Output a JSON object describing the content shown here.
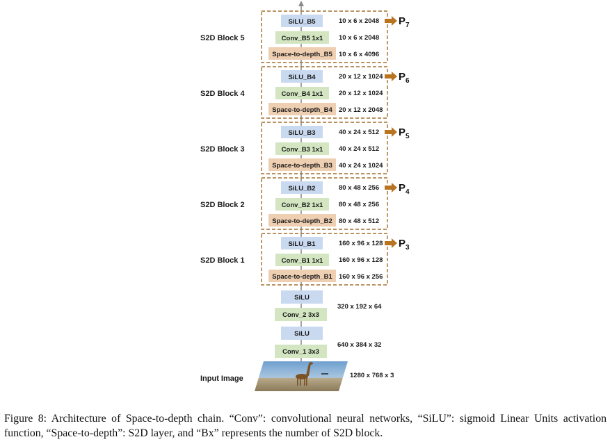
{
  "diagram": {
    "input_image_label": "Input Image",
    "input_dims": "1280 x 768 x 3",
    "stem": [
      {
        "name": "Conv_1 3x3",
        "kind": "conv"
      },
      {
        "name": "SiLU",
        "kind": "silu"
      },
      {
        "name": "Conv_2 3x3",
        "kind": "conv"
      },
      {
        "name": "SiLU",
        "kind": "silu"
      }
    ],
    "stem_dims": [
      "640 x 384 x 32",
      "320 x 192 x 64"
    ],
    "blocks": [
      {
        "label": "S2D Block 1",
        "s2d": "Space-to-depth_B1",
        "conv": "Conv_B1 1x1",
        "silu": "SiLU_B1",
        "s2d_dims": "160 x 96 x 256",
        "conv_dims": "160 x 96 x 128",
        "silu_dims": "160 x 96 x 128",
        "output": "P",
        "output_sub": "3"
      },
      {
        "label": "S2D Block 2",
        "s2d": "Space-to-depth_B2",
        "conv": "Conv_B2 1x1",
        "silu": "SiLU_B2",
        "s2d_dims": "80 x 48 x 512",
        "conv_dims": "80 x 48 x 256",
        "silu_dims": "80 x 48 x 256",
        "output": "P",
        "output_sub": "4"
      },
      {
        "label": "S2D Block 3",
        "s2d": "Space-to-depth_B3",
        "conv": "Conv_B3 1x1",
        "silu": "SiLU_B3",
        "s2d_dims": "40 x 24 x 1024",
        "conv_dims": "40 x 24 x 512",
        "silu_dims": "40 x 24 x 512",
        "output": "P",
        "output_sub": "5"
      },
      {
        "label": "S2D Block 4",
        "s2d": "Space-to-depth_B4",
        "conv": "Conv_B4 1x1",
        "silu": "SiLU_B4",
        "s2d_dims": "20 x 12 x 2048",
        "conv_dims": "20 x 12 x 1024",
        "silu_dims": "20 x 12 x 1024",
        "output": "P",
        "output_sub": "6"
      },
      {
        "label": "S2D Block 5",
        "s2d": "Space-to-depth_B5",
        "conv": "Conv_B5 1x1",
        "silu": "SiLU_B5",
        "s2d_dims": "10 x 6 x 4096",
        "conv_dims": "10 x 6 x 2048",
        "silu_dims": "10 x 6 x 2048",
        "output": "P",
        "output_sub": "7"
      }
    ],
    "colors": {
      "silu": "#c9d9ef",
      "conv": "#d3e6c1",
      "s2d": "#efcfb2",
      "block_border": "#a36f2c",
      "output_arrow": "#b8741f",
      "flow": "#8c8c8c"
    }
  },
  "caption": "Figure 8: Architecture of Space-to-depth chain. “Conv”: convolutional neural networks, “SiLU”: sigmoid Linear Units activation function, “Space-to-depth”: S2D layer, and “Bx” represents the number of S2D block."
}
